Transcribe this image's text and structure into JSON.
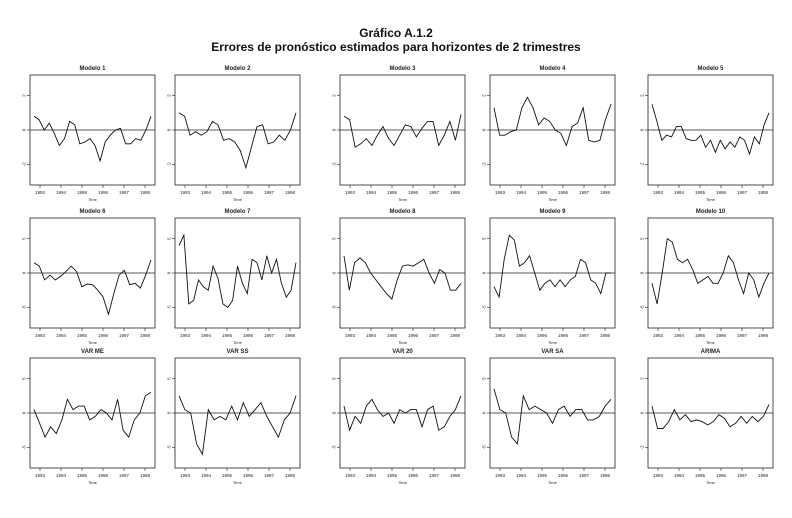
{
  "title": "Gráfico A.1.2",
  "subtitle": "Errores de pronóstico estimados para horizontes de 2 trimestres",
  "chart_data": [
    {
      "type": "line",
      "title": "Modelo 1",
      "xlabel": "Time",
      "x_ticks": [
        "1993",
        "1994",
        "1995",
        "1996",
        "1997",
        "1998"
      ],
      "y_ticks": [
        "2",
        "0",
        "-2"
      ],
      "values": [
        0.8,
        0.6,
        0.0,
        0.4,
        -0.2,
        -0.9,
        -0.5,
        0.5,
        0.3,
        -0.8,
        -0.7,
        -0.5,
        -0.9,
        -1.8,
        -0.7,
        -0.3,
        0.0,
        0.1,
        -0.8,
        -0.8,
        -0.5,
        -0.6,
        0.0,
        0.8
      ]
    },
    {
      "type": "line",
      "title": "Modelo 2",
      "xlabel": "Time",
      "x_ticks": [
        "1993",
        "1994",
        "1995",
        "1996",
        "1997",
        "1998"
      ],
      "y_ticks": [
        "2",
        "0",
        "-2"
      ],
      "values": [
        1.0,
        0.8,
        -0.3,
        -0.1,
        -0.3,
        -0.1,
        0.5,
        0.3,
        -0.6,
        -0.5,
        -0.7,
        -1.2,
        -2.2,
        -1.0,
        0.2,
        0.3,
        -0.8,
        -0.7,
        -0.3,
        -0.6,
        0.0,
        1.0
      ]
    },
    {
      "type": "line",
      "title": "Modelo 3",
      "xlabel": "Time",
      "x_ticks": [
        "1993",
        "1994",
        "1995",
        "1996",
        "1997",
        "1998"
      ],
      "y_ticks": [
        "2",
        "0",
        "-2"
      ],
      "values": [
        0.8,
        0.6,
        -1.0,
        -0.8,
        -0.5,
        -0.9,
        -0.3,
        0.2,
        -0.5,
        -0.9,
        -0.3,
        0.3,
        0.2,
        -0.4,
        0.1,
        0.5,
        0.5,
        -0.9,
        -0.3,
        0.5,
        -0.6,
        0.9
      ]
    },
    {
      "type": "line",
      "title": "Modelo 4",
      "xlabel": "Time",
      "x_ticks": [
        "1993",
        "1994",
        "1995",
        "1996",
        "1997",
        "1998"
      ],
      "y_ticks": [
        "2",
        "0",
        "-2"
      ],
      "values": [
        1.3,
        -0.3,
        -0.3,
        -0.1,
        0.0,
        1.3,
        1.9,
        1.3,
        0.3,
        0.7,
        0.5,
        0.0,
        -0.2,
        -0.9,
        0.2,
        0.4,
        1.3,
        -0.6,
        -0.7,
        -0.6,
        0.6,
        1.5
      ]
    },
    {
      "type": "line",
      "title": "Modelo 5",
      "xlabel": "Time",
      "x_ticks": [
        "1993",
        "1994",
        "1995",
        "1996",
        "1997",
        "1998"
      ],
      "y_ticks": [
        "2",
        "0",
        "-2"
      ],
      "values": [
        1.5,
        0.5,
        -0.6,
        -0.3,
        -0.4,
        0.2,
        0.2,
        -0.5,
        -0.6,
        -0.6,
        -0.3,
        -1.0,
        -0.6,
        -1.3,
        -0.6,
        -1.1,
        -0.7,
        -1.0,
        -0.4,
        -0.6,
        -1.4,
        -0.4,
        -0.8,
        0.3,
        1.0
      ]
    },
    {
      "type": "line",
      "title": "Modelo 6",
      "xlabel": "Time",
      "x_ticks": [
        "1993",
        "1994",
        "1995",
        "1996",
        "1997",
        "1998"
      ],
      "y_ticks": [
        "5",
        "0",
        "-5"
      ],
      "values": [
        1.5,
        1.0,
        -1.0,
        -0.3,
        -1.0,
        -0.5,
        0.2,
        1.0,
        0.2,
        -2.0,
        -1.6,
        -1.7,
        -2.5,
        -3.5,
        -6.0,
        -3.0,
        -0.3,
        0.4,
        -1.7,
        -1.5,
        -2.2,
        -0.3,
        1.9
      ]
    },
    {
      "type": "line",
      "title": "Modelo 7",
      "xlabel": "Time",
      "x_ticks": [
        "1993",
        "1994",
        "1995",
        "1996",
        "1997",
        "1998"
      ],
      "y_ticks": [
        "5",
        "0",
        "-5"
      ],
      "values": [
        4.0,
        5.5,
        -4.5,
        -4.0,
        -1.0,
        -2.0,
        -2.5,
        1.0,
        -0.8,
        -4.5,
        -5.0,
        -4.0,
        1.0,
        -1.5,
        -3.0,
        2.0,
        1.5,
        -1.0,
        2.5,
        0.0,
        2.0,
        -1.5,
        -3.5,
        -2.5,
        1.5
      ]
    },
    {
      "type": "line",
      "title": "Modelo 8",
      "xlabel": "Time",
      "x_ticks": [
        "1993",
        "1994",
        "1995",
        "1996",
        "1997",
        "1998"
      ],
      "y_ticks": [
        "5",
        "0",
        "-5"
      ],
      "values": [
        2.5,
        -2.5,
        1.5,
        2.2,
        1.5,
        0.0,
        -1.0,
        -2.0,
        -3.0,
        -3.8,
        -1.0,
        1.0,
        1.2,
        1.0,
        1.5,
        2.0,
        0.0,
        -1.5,
        0.5,
        0.0,
        -2.5,
        -2.5,
        -1.5
      ]
    },
    {
      "type": "line",
      "title": "Modelo 9",
      "xlabel": "Time",
      "x_ticks": [
        "1993",
        "1994",
        "1995",
        "1996",
        "1997",
        "1998"
      ],
      "y_ticks": [
        "5",
        "0",
        "-5"
      ],
      "values": [
        -2.0,
        -3.5,
        2.0,
        5.5,
        4.8,
        1.0,
        1.5,
        2.5,
        0.0,
        -2.5,
        -1.5,
        -1.0,
        -2.0,
        -1.0,
        -2.0,
        -1.0,
        -0.5,
        2.0,
        1.5,
        -1.0,
        -1.5,
        -3.0,
        0.0,
        0.0
      ]
    },
    {
      "type": "line",
      "title": "Modelo 10",
      "xlabel": "Time",
      "x_ticks": [
        "1993",
        "1994",
        "1995",
        "1996",
        "1997",
        "1998"
      ],
      "y_ticks": [
        "5",
        "0",
        "-5"
      ],
      "values": [
        -1.5,
        -4.5,
        0.0,
        5.0,
        4.5,
        2.0,
        1.5,
        2.0,
        0.5,
        -1.5,
        -1.0,
        -0.5,
        -1.5,
        -1.5,
        0.0,
        2.5,
        1.5,
        -1.0,
        -3.0,
        0.0,
        -1.0,
        -3.5,
        -1.5,
        0.0
      ]
    },
    {
      "type": "line",
      "title": "VAR ME",
      "xlabel": "Time",
      "x_ticks": [
        "1993",
        "1994",
        "1995",
        "1996",
        "1997",
        "1998"
      ],
      "y_ticks": [
        "5",
        "0",
        "-5"
      ],
      "values": [
        0.5,
        -1.5,
        -3.5,
        -2.0,
        -3.0,
        -1.0,
        2.0,
        0.5,
        1.0,
        1.0,
        -1.0,
        -0.5,
        0.5,
        0.0,
        -1.0,
        2.0,
        -2.5,
        -3.5,
        -1.0,
        0.0,
        2.5,
        3.0
      ]
    },
    {
      "type": "line",
      "title": "VAR SS",
      "xlabel": "Time",
      "x_ticks": [
        "1993",
        "1994",
        "1995",
        "1996",
        "1997",
        "1998"
      ],
      "y_ticks": [
        "5",
        "0",
        "-5"
      ],
      "values": [
        2.5,
        0.5,
        0.0,
        -4.5,
        -6.0,
        0.5,
        -1.0,
        -0.5,
        -1.0,
        1.0,
        -1.0,
        1.5,
        -0.5,
        0.5,
        1.5,
        -0.5,
        -2.0,
        -3.5,
        -1.0,
        0.0,
        2.5
      ]
    },
    {
      "type": "line",
      "title": "VAR 20",
      "xlabel": "Time",
      "x_ticks": [
        "1993",
        "1994",
        "1995",
        "1996",
        "1997",
        "1998"
      ],
      "y_ticks": [
        "5",
        "0",
        "-5"
      ],
      "values": [
        1.0,
        -2.5,
        -0.5,
        -1.5,
        1.0,
        2.0,
        0.5,
        -0.5,
        0.0,
        -1.5,
        0.5,
        0.0,
        0.5,
        0.5,
        -2.0,
        0.5,
        1.0,
        -2.5,
        -2.0,
        -0.5,
        0.5,
        2.5
      ]
    },
    {
      "type": "line",
      "title": "VAR SA",
      "xlabel": "Time",
      "x_ticks": [
        "1993",
        "1994",
        "1995",
        "1996",
        "1997",
        "1998"
      ],
      "y_ticks": [
        "5",
        "0",
        "-5"
      ],
      "values": [
        3.5,
        0.5,
        0.0,
        -3.5,
        -4.5,
        2.5,
        0.5,
        1.0,
        0.5,
        0.0,
        -1.5,
        0.5,
        1.0,
        -0.5,
        0.5,
        0.5,
        -1.0,
        -1.0,
        -0.5,
        1.0,
        2.0
      ]
    },
    {
      "type": "line",
      "title": "ARIMA",
      "xlabel": "Time",
      "x_ticks": [
        "1993",
        "1994",
        "1995",
        "1996",
        "1997",
        "1998"
      ],
      "y_ticks": [
        "2",
        "0",
        "-2"
      ],
      "values": [
        0.4,
        -0.9,
        -0.9,
        -0.5,
        0.2,
        -0.4,
        -0.1,
        -0.5,
        -0.4,
        -0.5,
        -0.7,
        -0.5,
        -0.1,
        -0.3,
        -0.8,
        -0.6,
        -0.2,
        -0.6,
        -0.2,
        -0.5,
        -0.2,
        0.5
      ]
    }
  ]
}
